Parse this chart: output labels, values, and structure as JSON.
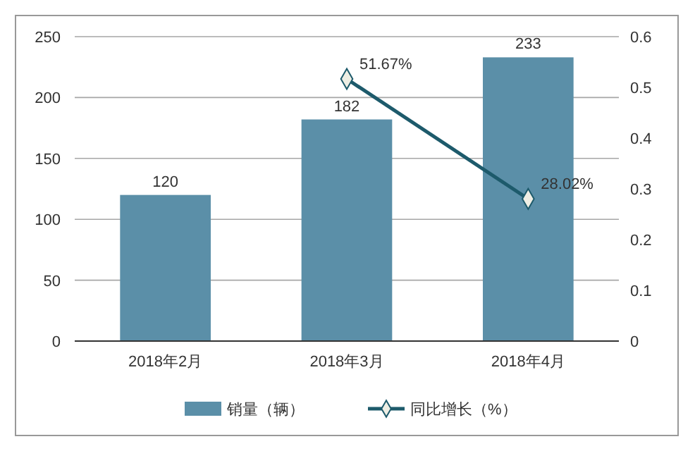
{
  "chart_data": {
    "type": "bar",
    "categories": [
      "2018年2月",
      "2018年3月",
      "2018年4月"
    ],
    "series": [
      {
        "name": "销量（辆）",
        "color": "#5b8fa8",
        "values": [
          120,
          182,
          233
        ],
        "data_labels": true
      },
      {
        "name": "同比增长（%）",
        "type": "line",
        "axis": "y2",
        "color": "#1d5a6b",
        "values": [
          null,
          0.5167,
          0.2802
        ],
        "value_labels": [
          null,
          "51.67%",
          "28.02%"
        ],
        "marker": "diamond"
      }
    ],
    "ylim": [
      0,
      250
    ],
    "yticks": [
      0,
      50,
      100,
      150,
      200,
      250
    ],
    "y2lim": [
      0,
      0.6
    ],
    "y2ticks": [
      0,
      0.1,
      0.2,
      0.3,
      0.4,
      0.5,
      0.6
    ],
    "grid": "y",
    "legend": "bottom"
  }
}
